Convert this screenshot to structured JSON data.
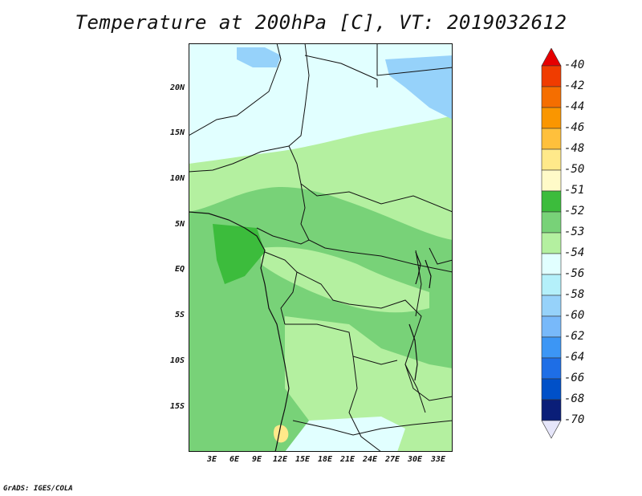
{
  "title": "Temperature at 200hPa [C], VT: 2019032612",
  "credit": "GrADS: IGES/COLA",
  "latitude_labels": [
    "20N",
    "15N",
    "10N",
    "5N",
    "EQ",
    "5S",
    "10S",
    "15S"
  ],
  "longitude_labels": [
    "3E",
    "6E",
    "9E",
    "12E",
    "15E",
    "18E",
    "21E",
    "24E",
    "27E",
    "30E",
    "33E"
  ],
  "colorbar": {
    "labels": [
      "-40",
      "-42",
      "-44",
      "-46",
      "-48",
      "-50",
      "-51",
      "-52",
      "-53",
      "-54",
      "-56",
      "-58",
      "-60",
      "-62",
      "-64",
      "-66",
      "-68",
      "-70"
    ],
    "colors": [
      "#e60000",
      "#f03c00",
      "#f56e00",
      "#fa9600",
      "#ffc03c",
      "#ffe98a",
      "#fffac8",
      "#3cbc3c",
      "#78d278",
      "#b4f0a0",
      "#e1ffff",
      "#b4f0fa",
      "#96d2fa",
      "#78b9fa",
      "#3c96f5",
      "#1e6ee6",
      "#0050c8",
      "#0a1e78",
      "#e6e6fa"
    ]
  }
}
